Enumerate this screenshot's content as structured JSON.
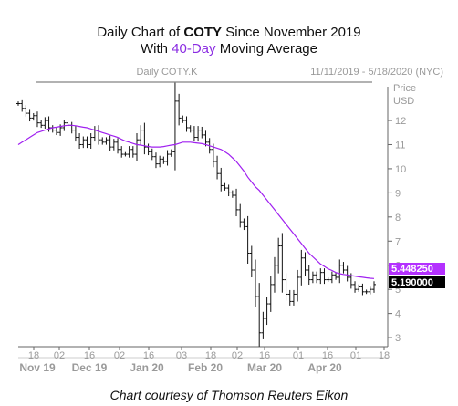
{
  "title": {
    "line1_prefix": "Daily Chart of ",
    "line1_ticker": "COTY",
    "line1_suffix": " Since November 2019",
    "line2_prefix": "With ",
    "line2_accent": "40-Day",
    "line2_suffix": " Moving Average"
  },
  "credit": "Chart courtesy of Thomson Reuters Eikon",
  "colors": {
    "price": "#111111",
    "moving_average": "#a020f0",
    "ma_tag": "#b430ff",
    "price_tag": "#000000",
    "axis_text": "#9a9a9a",
    "frame": "#666666"
  },
  "chart_data": {
    "type": "line",
    "chart_label": "Daily COTY.K",
    "date_range": "11/11/2019 - 5/18/2020 (NYC)",
    "y_axis_head": [
      "Price",
      "USD"
    ],
    "ylim": [
      2.7,
      13.4
    ],
    "y_ticks": [
      3,
      4,
      5,
      6,
      7,
      8,
      9,
      10,
      11,
      12
    ],
    "x_tick_labels": [
      "18",
      "02",
      "16",
      "02",
      "16",
      "03",
      "18",
      "02",
      "16",
      "01",
      "16",
      "01",
      "18"
    ],
    "month_labels": [
      "Nov 19",
      "Dec 19",
      "Jan 20",
      "Feb 20",
      "Mar 20",
      "Apr 20"
    ],
    "price_series": {
      "style": "daily bars",
      "values": [
        12.7,
        12.5,
        12.3,
        12.1,
        12.2,
        11.9,
        11.8,
        12.0,
        11.7,
        11.6,
        11.5,
        11.7,
        11.9,
        11.8,
        11.6,
        11.3,
        11.0,
        11.2,
        11.0,
        11.3,
        11.6,
        11.2,
        11.1,
        11.2,
        10.9,
        11.1,
        10.8,
        10.6,
        10.6,
        10.8,
        10.6,
        11.2,
        11.6,
        10.9,
        10.7,
        10.5,
        10.2,
        10.4,
        10.3,
        10.6,
        10.7,
        12.8,
        12.1,
        12.0,
        11.7,
        11.6,
        11.3,
        11.6,
        11.4,
        11.1,
        10.8,
        10.3,
        9.8,
        9.3,
        9.2,
        9.0,
        8.9,
        8.3,
        7.8,
        7.6,
        6.5,
        5.8,
        4.7,
        3.2,
        3.8,
        4.4,
        5.2,
        6.0,
        6.8,
        5.4,
        4.8,
        4.5,
        4.8,
        5.5,
        6.3,
        5.8,
        5.4,
        5.6,
        5.4,
        5.7,
        5.4,
        5.4,
        5.6,
        5.5,
        6.0,
        5.8,
        5.5,
        5.2,
        5.0,
        5.1,
        4.9,
        4.9,
        5.0,
        5.2
      ]
    },
    "series": [
      {
        "name": "",
        "values": [
          11.0,
          11.1,
          11.2,
          11.3,
          11.4,
          11.5,
          11.55,
          11.6,
          11.65,
          11.7,
          11.72,
          11.75,
          11.78,
          11.8,
          11.8,
          11.78,
          11.75,
          11.72,
          11.7,
          11.65,
          11.6,
          11.55,
          11.5,
          11.45,
          11.4,
          11.35,
          11.3,
          11.22,
          11.15,
          11.1,
          11.05,
          11.0,
          10.98,
          10.95,
          10.92,
          10.9,
          10.9,
          10.9,
          10.92,
          10.95,
          10.98,
          11.0,
          11.05,
          11.1,
          11.1,
          11.1,
          11.08,
          11.06,
          11.04,
          11.0,
          10.95,
          10.9,
          10.85,
          10.8,
          10.7,
          10.6,
          10.45,
          10.3,
          10.1,
          9.9,
          9.65,
          9.45,
          9.25,
          9.1,
          8.9,
          8.7,
          8.5,
          8.3,
          8.1,
          7.9,
          7.7,
          7.5,
          7.3,
          7.1,
          6.9,
          6.7,
          6.5,
          6.35,
          6.2,
          6.05,
          5.95,
          5.85,
          5.78,
          5.7,
          5.65,
          5.62,
          5.6,
          5.57,
          5.55,
          5.52,
          5.5,
          5.48,
          5.46,
          5.45
        ]
      }
    ],
    "last_values": {
      "moving_average": "5.448250",
      "price": "5.190000"
    }
  }
}
